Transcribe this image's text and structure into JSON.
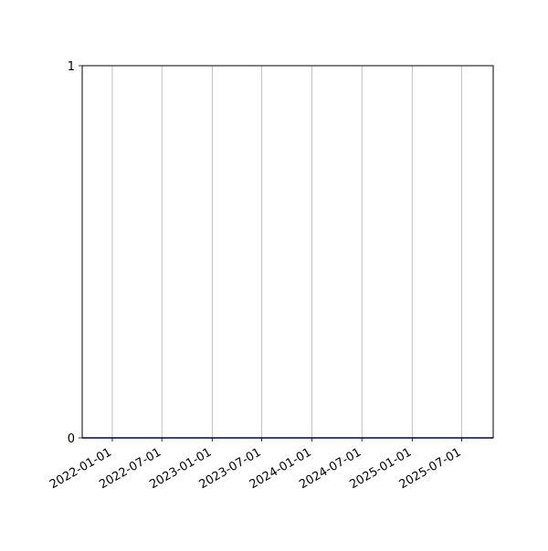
{
  "chart_data": {
    "type": "line",
    "title": "",
    "xlabel": "",
    "ylabel": "",
    "x_type": "date",
    "xlim": [
      "2021-09-13",
      "2025-10-24"
    ],
    "ylim": [
      0,
      1
    ],
    "x_ticks": [
      "2022-01-01",
      "2022-07-01",
      "2023-01-01",
      "2023-07-01",
      "2024-01-01",
      "2024-07-01",
      "2025-01-01",
      "2025-07-01"
    ],
    "y_ticks": [
      0,
      1
    ],
    "grid": {
      "x": true,
      "y": false
    },
    "series": [
      {
        "color": "#0000cc",
        "x": [
          "2021-09-13",
          "2025-10-24"
        ],
        "y": [
          0,
          0
        ]
      }
    ]
  }
}
